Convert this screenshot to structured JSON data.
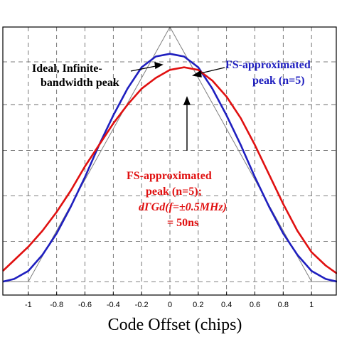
{
  "chart_data": {
    "type": "line",
    "title": "",
    "xlabel": "Code Offset (chips)",
    "ylabel": "",
    "xlim": [
      -1.18,
      1.18
    ],
    "ylim": [
      0,
      1
    ],
    "grid": true,
    "x_ticks": [
      "-1",
      "-0.8",
      "-0.6",
      "-0.4",
      "-0.2",
      "0",
      "0.2",
      "0.4",
      "0.6",
      "0.8",
      "1"
    ],
    "x_tick_values": [
      -1,
      -0.8,
      -0.6,
      -0.4,
      -0.2,
      0,
      0.2,
      0.4,
      0.6,
      0.8,
      1
    ],
    "series": [
      {
        "color": "#7f7f7f",
        "x": [
          -1.18,
          -1.0,
          0.0,
          1.0,
          1.18
        ],
        "y": [
          0.05,
          0.05,
          1.0,
          0.05,
          0.05
        ]
      },
      {
        "color": "#1f1fbf",
        "x": [
          -1.18,
          -1.1,
          -1.0,
          -0.9,
          -0.8,
          -0.7,
          -0.6,
          -0.5,
          -0.4,
          -0.3,
          -0.2,
          -0.1,
          0.0,
          0.1,
          0.2,
          0.3,
          0.4,
          0.5,
          0.6,
          0.7,
          0.8,
          0.9,
          1.0,
          1.1,
          1.18
        ],
        "y": [
          0.05,
          0.06,
          0.09,
          0.15,
          0.23,
          0.33,
          0.44,
          0.56,
          0.67,
          0.77,
          0.85,
          0.89,
          0.9,
          0.89,
          0.85,
          0.77,
          0.67,
          0.56,
          0.44,
          0.33,
          0.23,
          0.15,
          0.09,
          0.06,
          0.05
        ]
      },
      {
        "color": "#e01010",
        "x": [
          -1.18,
          -1.1,
          -1.0,
          -0.9,
          -0.8,
          -0.7,
          -0.6,
          -0.5,
          -0.4,
          -0.3,
          -0.2,
          -0.1,
          0.0,
          0.1,
          0.2,
          0.3,
          0.4,
          0.5,
          0.6,
          0.7,
          0.8,
          0.9,
          1.0,
          1.1,
          1.18
        ],
        "y": [
          0.09,
          0.13,
          0.18,
          0.24,
          0.31,
          0.39,
          0.48,
          0.56,
          0.64,
          0.71,
          0.77,
          0.81,
          0.84,
          0.85,
          0.84,
          0.8,
          0.74,
          0.66,
          0.56,
          0.45,
          0.34,
          0.24,
          0.16,
          0.11,
          0.08
        ]
      }
    ],
    "annotations": [
      {
        "lines": [
          "Ideal, Infinite-",
          "bandwidth peak"
        ],
        "color": "#000000"
      },
      {
        "lines": [
          "FS-approximated",
          "peak (n=5)"
        ],
        "color": "#1f1fbf"
      },
      {
        "lines": [
          "FS-approximated",
          "peak (n=5);",
          "dΓGd(f=±0.5MHz)",
          "= 50ns"
        ],
        "color": "#e01010"
      }
    ]
  }
}
